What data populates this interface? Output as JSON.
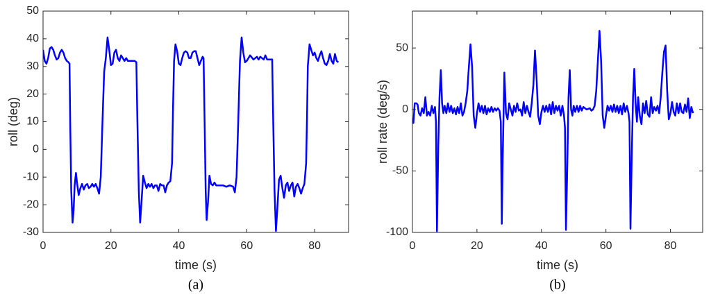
{
  "chart_data": [
    {
      "type": "line",
      "caption": "(a)",
      "xlabel": "time (s)",
      "ylabel": "roll (deg)",
      "xlim": [
        0,
        90
      ],
      "xticks": [
        0,
        20,
        40,
        60,
        80
      ],
      "ylim": [
        -30,
        50
      ],
      "yticks": [
        -30,
        -20,
        -10,
        0,
        10,
        20,
        30,
        40,
        50
      ],
      "color": "#0000ff",
      "x": [
        0,
        0.5,
        1,
        1.5,
        2,
        2.5,
        3,
        3.5,
        4,
        4.5,
        5,
        5.5,
        6,
        6.5,
        7,
        7.5,
        7.8,
        8,
        8.3,
        8.7,
        9,
        9.3,
        9.7,
        10,
        10.5,
        11,
        11.5,
        12,
        12.5,
        13,
        13.5,
        14,
        14.5,
        15,
        15.5,
        16,
        16.5,
        17,
        17.5,
        18,
        18.5,
        19,
        19.5,
        20,
        20.5,
        21,
        21.5,
        22,
        22.5,
        23,
        23.5,
        24,
        24.5,
        25,
        26,
        27,
        27.5,
        27.8,
        28.2,
        28.6,
        29,
        29.5,
        30,
        30.5,
        31,
        31.5,
        32,
        32.5,
        33,
        33.5,
        34,
        34.5,
        35,
        35.5,
        36,
        36.5,
        37,
        37.5,
        38,
        38.3,
        38.6,
        39,
        39.5,
        40,
        40.5,
        41,
        41.5,
        42,
        42.5,
        43,
        43.5,
        44,
        44.5,
        45,
        45.5,
        46,
        46.5,
        47,
        47.3,
        47.6,
        47.9,
        48.2,
        48.6,
        49,
        49.5,
        50,
        50.5,
        51,
        52,
        53,
        54,
        55,
        56,
        56.5,
        57,
        57.5,
        58,
        58.5,
        59,
        59.5,
        60,
        60.5,
        61,
        62,
        63,
        63.5,
        64,
        65,
        65.5,
        66,
        67,
        67.5,
        67.8,
        68.2,
        68.6,
        69,
        69.5,
        70,
        70.5,
        71,
        71.5,
        72,
        72.5,
        73,
        73.5,
        74,
        74.5,
        75,
        75.5,
        76,
        76.5,
        77,
        77.5,
        77.8,
        78,
        78.5,
        79,
        79.5,
        80,
        80.5,
        81,
        81.5,
        82,
        82.5,
        83,
        83.5,
        84,
        84.5,
        85,
        85.5,
        86,
        86.5,
        87
      ],
      "values": [
        36,
        32,
        31,
        33,
        36.5,
        37,
        36,
        34,
        32.5,
        33,
        35,
        36,
        35,
        33,
        32,
        31.5,
        31,
        10,
        -15,
        -26.5,
        -22,
        -13,
        -8.5,
        -12,
        -16.5,
        -14,
        -12.5,
        -14.5,
        -13,
        -12.5,
        -14,
        -13.5,
        -12.5,
        -13.5,
        -12.5,
        -14,
        -16,
        -10,
        10,
        28,
        33,
        40.5,
        36,
        30.5,
        31,
        35,
        36,
        33,
        32,
        34,
        33,
        32,
        33,
        32,
        32,
        32,
        31.5,
        10,
        -15,
        -26.5,
        -19,
        -9.5,
        -12,
        -14,
        -12.5,
        -13.5,
        -12.5,
        -14,
        -13,
        -13,
        -15,
        -12.5,
        -13,
        -13,
        -15.5,
        -13,
        -12,
        -11.5,
        -5,
        15,
        32,
        38,
        35.5,
        31,
        30.5,
        33,
        35,
        35.5,
        35,
        33,
        33,
        35,
        35.5,
        35.5,
        33,
        30.5,
        32,
        33.5,
        33,
        10,
        -15,
        -25.5,
        -19,
        -9.5,
        -12.5,
        -13,
        -12,
        -13,
        -13,
        -13,
        -13.5,
        -13,
        -13.5,
        -15.5,
        -10,
        10,
        32,
        40.5,
        35,
        31.5,
        32,
        33,
        34,
        32.5,
        33.5,
        32.5,
        33.5,
        32.5,
        34,
        32.5,
        32.5,
        32.5,
        10,
        -15,
        -29.5,
        -22,
        -11,
        -9.5,
        -14,
        -17.5,
        -13,
        -12,
        -15,
        -13,
        -12,
        -17,
        -13.5,
        -12.5,
        -14,
        -16,
        -14,
        -12.5,
        -5,
        15,
        30,
        38,
        36,
        34,
        35,
        33,
        32,
        34,
        35.5,
        33,
        31,
        30.5,
        32,
        34.5,
        32,
        31,
        34.5,
        32,
        31.5
      ]
    },
    {
      "type": "line",
      "caption": "(b)",
      "xlabel": "time (s)",
      "ylabel": "roll rate (deg/s)",
      "xlim": [
        0,
        90
      ],
      "xticks": [
        0,
        20,
        40,
        60,
        80
      ],
      "ylim": [
        -100,
        80
      ],
      "yticks": [
        -100,
        -50,
        0,
        50
      ],
      "color": "#0000ff",
      "x": [
        0,
        0.3,
        0.7,
        1.2,
        1.6,
        2,
        2.5,
        3,
        3.5,
        4,
        4.5,
        5,
        5.5,
        6,
        6.5,
        7,
        7.3,
        7.6,
        8,
        8.4,
        8.8,
        9.2,
        9.6,
        10,
        10.5,
        11,
        11.5,
        12,
        12.5,
        13,
        13.5,
        14,
        14.5,
        15,
        15.5,
        16,
        16.5,
        17,
        17.5,
        18,
        18.5,
        19,
        19.5,
        20,
        20.5,
        21,
        21.5,
        22,
        22.5,
        23,
        23.5,
        24,
        24.5,
        25,
        25.5,
        26,
        26.5,
        27,
        27.4,
        27.7,
        28,
        28.5,
        29,
        29.5,
        30,
        30.5,
        31,
        31.5,
        32,
        32.5,
        33,
        33.5,
        34,
        34.5,
        35,
        35.5,
        36,
        36.5,
        37,
        37.5,
        38,
        38.5,
        39,
        39.5,
        40,
        40.5,
        41,
        41.5,
        42,
        42.5,
        43,
        43.5,
        44,
        44.5,
        45,
        45.5,
        46,
        46.5,
        47,
        47.3,
        47.6,
        48,
        48.4,
        48.8,
        49.2,
        49.6,
        50,
        50.5,
        51,
        51.5,
        52,
        52.5,
        53,
        54,
        55,
        55.5,
        56,
        56.5,
        57,
        57.5,
        58,
        58.5,
        59,
        59.5,
        60,
        60.5,
        61,
        61.5,
        62,
        62.5,
        63,
        63.5,
        64,
        64.5,
        65,
        65.5,
        66,
        66.5,
        67,
        67.3,
        67.6,
        68,
        68.4,
        68.8,
        69.2,
        69.6,
        70,
        70.5,
        71,
        71.5,
        72,
        72.5,
        73,
        73.5,
        74,
        74.5,
        75,
        75.5,
        76,
        76.5,
        77,
        77.5,
        78,
        78.5,
        79,
        79.5,
        80,
        80.5,
        81,
        81.5,
        82,
        82.5,
        83,
        83.5,
        84,
        84.5,
        85,
        85.5,
        86,
        86.5,
        87
      ],
      "values": [
        -10,
        -11,
        5,
        5,
        4,
        -3,
        -5,
        1,
        -3,
        10,
        -5,
        -2,
        -5,
        3,
        -3,
        2,
        -10,
        -99,
        -30,
        10,
        32,
        5,
        -3,
        3,
        -3,
        5,
        -2,
        3,
        -3,
        1,
        -4,
        2,
        -3,
        5,
        -5,
        -2,
        5,
        15,
        35,
        53,
        35,
        -5,
        -15,
        -3,
        5,
        -2,
        3,
        -3,
        3,
        -4,
        1,
        -2,
        2,
        -2,
        1,
        -1,
        1,
        -1,
        -10,
        -93,
        -40,
        30,
        -3,
        -8,
        5,
        0,
        -5,
        3,
        -2,
        5,
        -1,
        0,
        -5,
        6,
        -3,
        3,
        -2,
        -6,
        5,
        20,
        48,
        25,
        -5,
        -12,
        -2,
        3,
        -2,
        3,
        -2,
        4,
        -4,
        6,
        -3,
        3,
        -1,
        3,
        -5,
        3,
        -5,
        -15,
        -98,
        -50,
        10,
        32,
        0,
        -5,
        3,
        -2,
        3,
        -2,
        3,
        -1,
        2,
        0,
        1,
        -1,
        0,
        3,
        15,
        40,
        64,
        40,
        -5,
        -15,
        -5,
        3,
        -1,
        3,
        -2,
        4,
        -2,
        3,
        -3,
        3,
        -4,
        5,
        -2,
        3,
        -3,
        -10,
        -97,
        -40,
        10,
        33,
        5,
        -10,
        10,
        -5,
        -12,
        5,
        -3,
        7,
        -4,
        -6,
        10,
        -3,
        2,
        -1,
        3,
        -3,
        10,
        30,
        47,
        52,
        15,
        -8,
        -3,
        6,
        -2,
        -5,
        5,
        -3,
        5,
        -2,
        -3,
        4,
        -2,
        9,
        -7,
        2,
        -3
      ]
    }
  ]
}
